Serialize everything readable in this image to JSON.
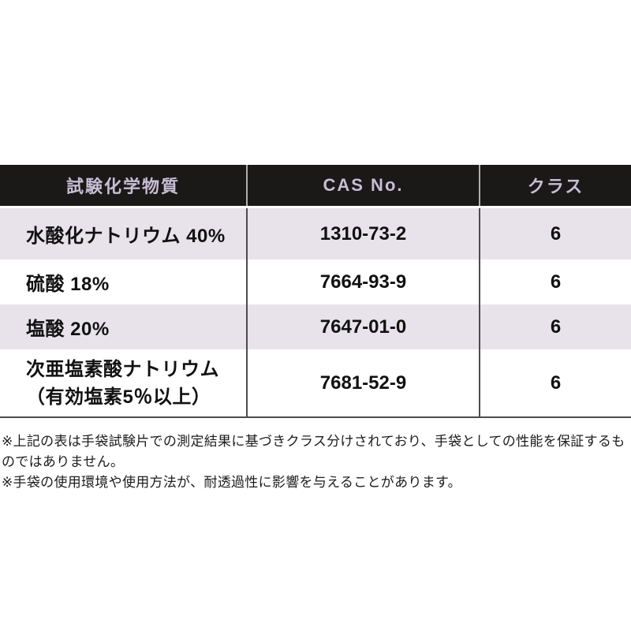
{
  "table": {
    "header": {
      "substance": "試験化学物質",
      "cas": "CAS No.",
      "class": "クラス"
    },
    "rows": [
      {
        "substance": "水酸化ナトリウム 40%",
        "cas": "1310-73-2",
        "class": "6"
      },
      {
        "substance": "硫酸 18%",
        "cas": "7664-93-9",
        "class": "6"
      },
      {
        "substance": "塩酸 20%",
        "cas": "7647-01-0",
        "class": "6"
      },
      {
        "substance": "次亜塩素酸ナトリウム",
        "substance_line2": "（有効塩素5％以上）",
        "cas": "7681-52-9",
        "class": "6"
      }
    ]
  },
  "footnotes": [
    "※上記の表は手袋試験片での測定結果に基づきクラス分けされており、手袋としての性能を保証するものではありません。",
    "※手袋の使用環境や使用方法が、耐透過性に影響を与えることがあります。"
  ],
  "colors": {
    "header_bg": "#1b1818",
    "header_text": "#c7bed5",
    "row_alt_bg": "#e8e3eb",
    "row_bg": "#ffffff",
    "body_divider": "#4c4c4c",
    "header_divider": "#b0aeae",
    "body_text": "#111111"
  }
}
